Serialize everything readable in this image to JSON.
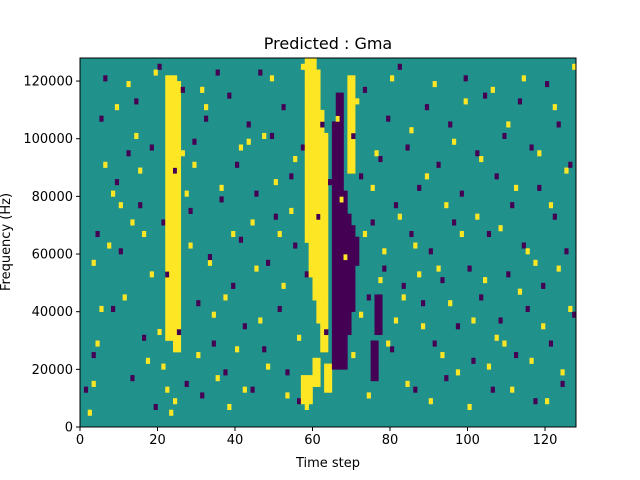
{
  "chart_data": {
    "type": "heatmap",
    "title": "Predicted : Gma",
    "xlabel": "Time step",
    "ylabel": "Frequency (Hz)",
    "xlim": [
      0,
      128
    ],
    "ylim": [
      0,
      128000
    ],
    "x_ticks": [
      0,
      20,
      40,
      60,
      80,
      100,
      120
    ],
    "y_ticks": [
      0,
      20000,
      40000,
      60000,
      80000,
      100000,
      120000
    ],
    "n_time_steps": 128,
    "n_freq_bins": 64,
    "grid": false,
    "colormap": "viridis",
    "value_levels": [
      -1,
      0,
      1
    ],
    "colors": {
      "low": "#440154",
      "mid": "#21918c",
      "high": "#fde725"
    },
    "background_value": 0,
    "high_cells": [
      [
        2,
        2
      ],
      [
        3,
        7
      ],
      [
        4,
        14
      ],
      [
        5,
        20
      ],
      [
        7,
        31
      ],
      [
        8,
        40
      ],
      [
        9,
        55
      ],
      [
        10,
        38
      ],
      [
        11,
        22
      ],
      [
        12,
        59
      ],
      [
        14,
        50
      ],
      [
        15,
        44
      ],
      [
        16,
        33
      ],
      [
        18,
        26
      ],
      [
        19,
        61
      ],
      [
        20,
        16
      ],
      [
        21,
        10
      ],
      [
        22,
        6
      ],
      [
        23,
        2
      ],
      [
        25,
        52
      ],
      [
        26,
        47
      ],
      [
        27,
        40
      ],
      [
        28,
        31
      ],
      [
        29,
        45
      ],
      [
        30,
        12
      ],
      [
        32,
        55
      ],
      [
        33,
        28
      ],
      [
        34,
        19
      ],
      [
        35,
        8
      ],
      [
        36,
        41
      ],
      [
        37,
        22
      ],
      [
        38,
        3
      ],
      [
        39,
        33
      ],
      [
        40,
        13
      ],
      [
        41,
        48
      ],
      [
        42,
        6
      ],
      [
        43,
        49
      ],
      [
        44,
        35
      ],
      [
        45,
        27
      ],
      [
        46,
        18
      ],
      [
        47,
        50
      ],
      [
        48,
        10
      ],
      [
        49,
        60
      ],
      [
        50,
        42
      ],
      [
        52,
        24
      ],
      [
        53,
        5
      ],
      [
        54,
        37
      ],
      [
        56,
        15
      ],
      [
        57,
        62
      ],
      [
        58,
        3
      ],
      [
        62,
        20
      ],
      [
        63,
        44
      ],
      [
        64,
        8
      ],
      [
        66,
        53
      ],
      [
        67,
        39
      ],
      [
        68,
        29
      ],
      [
        70,
        12
      ],
      [
        71,
        56
      ],
      [
        72,
        19
      ],
      [
        73,
        33
      ],
      [
        74,
        5
      ],
      [
        76,
        47
      ],
      [
        77,
        25
      ],
      [
        79,
        14
      ],
      [
        80,
        60
      ],
      [
        82,
        36
      ],
      [
        83,
        22
      ],
      [
        84,
        7
      ],
      [
        85,
        51
      ],
      [
        86,
        31
      ],
      [
        88,
        17
      ],
      [
        89,
        43
      ],
      [
        90,
        4
      ],
      [
        91,
        59
      ],
      [
        92,
        27
      ],
      [
        93,
        12
      ],
      [
        94,
        38
      ],
      [
        95,
        21
      ],
      [
        96,
        49
      ],
      [
        97,
        9
      ],
      [
        98,
        33
      ],
      [
        99,
        56
      ],
      [
        100,
        3
      ],
      [
        101,
        18
      ],
      [
        103,
        46
      ],
      [
        104,
        25
      ],
      [
        105,
        10
      ],
      [
        106,
        58
      ],
      [
        108,
        34
      ],
      [
        109,
        14
      ],
      [
        110,
        52
      ],
      [
        111,
        6
      ],
      [
        112,
        41
      ],
      [
        113,
        23
      ],
      [
        114,
        60
      ],
      [
        115,
        30
      ],
      [
        116,
        11
      ],
      [
        118,
        47
      ],
      [
        119,
        17
      ],
      [
        120,
        4
      ],
      [
        121,
        38
      ],
      [
        122,
        55
      ],
      [
        123,
        27
      ],
      [
        124,
        9
      ],
      [
        125,
        44
      ],
      [
        126,
        20
      ],
      [
        127,
        62
      ],
      [
        3,
        28
      ],
      [
        6,
        45
      ],
      [
        13,
        35
      ],
      [
        17,
        11
      ],
      [
        24,
        4
      ],
      [
        31,
        58
      ],
      [
        51,
        33
      ],
      [
        55,
        46
      ],
      [
        69,
        50
      ],
      [
        75,
        41
      ],
      [
        78,
        30
      ],
      [
        81,
        18
      ],
      [
        87,
        26
      ],
      [
        102,
        36
      ],
      [
        107,
        15
      ],
      [
        117,
        28
      ]
    ],
    "low_cells": [
      [
        1,
        6
      ],
      [
        3,
        12
      ],
      [
        4,
        33
      ],
      [
        5,
        53
      ],
      [
        6,
        60
      ],
      [
        8,
        20
      ],
      [
        9,
        42
      ],
      [
        10,
        30
      ],
      [
        12,
        47
      ],
      [
        13,
        8
      ],
      [
        14,
        56
      ],
      [
        15,
        38
      ],
      [
        16,
        15
      ],
      [
        18,
        48
      ],
      [
        19,
        3
      ],
      [
        20,
        62
      ],
      [
        21,
        35
      ],
      [
        22,
        26
      ],
      [
        24,
        44
      ],
      [
        25,
        16
      ],
      [
        26,
        58
      ],
      [
        27,
        7
      ],
      [
        28,
        37
      ],
      [
        29,
        49
      ],
      [
        30,
        21
      ],
      [
        31,
        5
      ],
      [
        32,
        53
      ],
      [
        33,
        29
      ],
      [
        34,
        14
      ],
      [
        35,
        61
      ],
      [
        36,
        39
      ],
      [
        37,
        9
      ],
      [
        38,
        57
      ],
      [
        39,
        24
      ],
      [
        40,
        45
      ],
      [
        41,
        32
      ],
      [
        42,
        17
      ],
      [
        43,
        52
      ],
      [
        44,
        6
      ],
      [
        45,
        40
      ],
      [
        46,
        61
      ],
      [
        47,
        13
      ],
      [
        48,
        28
      ],
      [
        49,
        50
      ],
      [
        50,
        36
      ],
      [
        51,
        20
      ],
      [
        52,
        55
      ],
      [
        53,
        9
      ],
      [
        54,
        43
      ],
      [
        55,
        31
      ],
      [
        56,
        4
      ],
      [
        57,
        48
      ],
      [
        58,
        26
      ],
      [
        61,
        36
      ],
      [
        62,
        52
      ],
      [
        63,
        16
      ],
      [
        64,
        42
      ],
      [
        70,
        50
      ],
      [
        71,
        30
      ],
      [
        72,
        43
      ],
      [
        73,
        58
      ],
      [
        74,
        22
      ],
      [
        75,
        35
      ],
      [
        76,
        10
      ],
      [
        77,
        46
      ],
      [
        78,
        27
      ],
      [
        79,
        53
      ],
      [
        80,
        13
      ],
      [
        81,
        38
      ],
      [
        82,
        62
      ],
      [
        83,
        24
      ],
      [
        84,
        48
      ],
      [
        85,
        33
      ],
      [
        86,
        6
      ],
      [
        87,
        41
      ],
      [
        88,
        21
      ],
      [
        89,
        55
      ],
      [
        90,
        30
      ],
      [
        91,
        14
      ],
      [
        92,
        45
      ],
      [
        93,
        25
      ],
      [
        94,
        8
      ],
      [
        95,
        52
      ],
      [
        96,
        35
      ],
      [
        97,
        17
      ],
      [
        98,
        40
      ],
      [
        99,
        60
      ],
      [
        100,
        27
      ],
      [
        101,
        11
      ],
      [
        102,
        47
      ],
      [
        103,
        22
      ],
      [
        104,
        57
      ],
      [
        105,
        33
      ],
      [
        106,
        6
      ],
      [
        107,
        43
      ],
      [
        108,
        18
      ],
      [
        109,
        50
      ],
      [
        110,
        26
      ],
      [
        111,
        38
      ],
      [
        112,
        12
      ],
      [
        113,
        56
      ],
      [
        114,
        31
      ],
      [
        115,
        20
      ],
      [
        116,
        48
      ],
      [
        117,
        4
      ],
      [
        118,
        41
      ],
      [
        119,
        24
      ],
      [
        120,
        59
      ],
      [
        121,
        14
      ],
      [
        122,
        36
      ],
      [
        123,
        52
      ],
      [
        124,
        7
      ],
      [
        125,
        30
      ],
      [
        126,
        45
      ],
      [
        127,
        19
      ]
    ],
    "high_bands": [
      [
        22,
        24,
        15,
        60
      ],
      [
        23,
        25,
        18,
        59
      ],
      [
        24,
        25,
        13,
        55
      ],
      [
        25,
        25,
        24,
        44
      ],
      [
        22,
        23,
        34,
        42
      ],
      [
        58,
        60,
        32,
        63
      ],
      [
        59,
        61,
        26,
        61
      ],
      [
        60,
        61,
        22,
        58
      ],
      [
        61,
        62,
        18,
        54
      ],
      [
        62,
        63,
        13,
        50
      ],
      [
        57,
        59,
        4,
        8
      ],
      [
        60,
        61,
        7,
        11
      ],
      [
        63,
        64,
        6,
        10
      ],
      [
        66,
        67,
        30,
        44
      ],
      [
        69,
        70,
        44,
        60
      ]
    ],
    "low_bands": [
      [
        65,
        66,
        10,
        48
      ],
      [
        66,
        68,
        12,
        40
      ],
      [
        67,
        68,
        10,
        30
      ],
      [
        68,
        69,
        16,
        36
      ],
      [
        69,
        70,
        20,
        34
      ],
      [
        66,
        67,
        40,
        57
      ],
      [
        65,
        66,
        48,
        52
      ],
      [
        70,
        71,
        28,
        32
      ],
      [
        75,
        76,
        8,
        14
      ],
      [
        76,
        77,
        16,
        22
      ]
    ]
  }
}
